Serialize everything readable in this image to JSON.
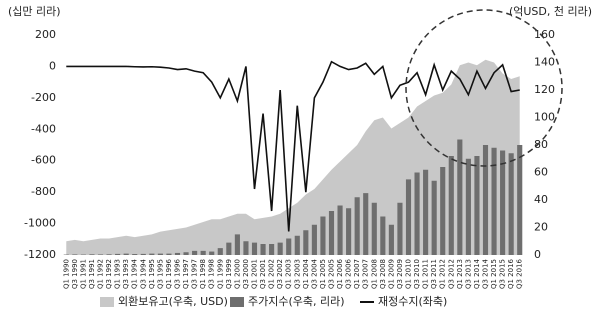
{
  "chart_data": {
    "type": "combo",
    "y_label": "(십만 리라)",
    "y2_label": "(억USD, 천 리라)",
    "categories": [
      "Q1 1990",
      "Q3 1990",
      "Q1 1991",
      "Q3 1991",
      "Q1 1992",
      "Q3 1992",
      "Q1 1993",
      "Q3 1993",
      "Q1 1994",
      "Q3 1994",
      "Q1 1995",
      "Q3 1995",
      "Q1 1996",
      "Q3 1996",
      "Q1 1997",
      "Q3 1997",
      "Q1 1998",
      "Q3 1998",
      "Q1 1999",
      "Q3 1999",
      "Q1 2000",
      "Q3 2000",
      "Q1 2001",
      "Q3 2001",
      "Q1 2002",
      "Q3 2002",
      "Q1 2003",
      "Q3 2003",
      "Q1 2004",
      "Q3 2004",
      "Q1 2005",
      "Q3 2005",
      "Q1 2006",
      "Q3 2006",
      "Q1 2007",
      "Q3 2007",
      "Q1 2008",
      "Q3 2008",
      "Q1 2009",
      "Q3 2009",
      "Q1 2010",
      "Q3 2010",
      "Q1 2011",
      "Q3 2011",
      "Q1 2012",
      "Q3 2012",
      "Q1 2013",
      "Q3 2013",
      "Q1 2014",
      "Q3 2014",
      "Q1 2015",
      "Q3 2015",
      "Q1 2016",
      "Q3 2016"
    ],
    "series": [
      {
        "name": "외환보유고(우축, USD)",
        "kind": "area",
        "axis": "y2",
        "color": "#c8c8c8",
        "values": [
          10,
          11,
          10,
          11,
          12,
          12,
          13,
          14,
          13,
          14,
          15,
          17,
          18,
          19,
          20,
          22,
          24,
          26,
          26,
          28,
          30,
          30,
          26,
          27,
          28,
          30,
          34,
          38,
          44,
          48,
          55,
          62,
          68,
          74,
          80,
          90,
          98,
          100,
          92,
          96,
          100,
          108,
          112,
          116,
          118,
          124,
          138,
          140,
          138,
          142,
          140,
          132,
          128,
          130
        ]
      },
      {
        "name": "주가지수(우축, 리라)",
        "kind": "bar",
        "axis": "y2",
        "color": "#6e6e6e",
        "values": [
          0.3,
          0.4,
          0.3,
          0.5,
          0.4,
          0.5,
          0.8,
          1,
          0.7,
          0.8,
          1,
          1,
          1,
          1.5,
          2,
          3,
          3,
          2.5,
          5,
          9,
          15,
          10,
          9,
          8,
          8,
          9,
          12,
          14,
          18,
          22,
          28,
          32,
          36,
          34,
          42,
          45,
          38,
          28,
          22,
          38,
          55,
          60,
          62,
          54,
          64,
          72,
          84,
          70,
          72,
          80,
          78,
          76,
          74,
          80
        ]
      },
      {
        "name": "재정수지(좌축)",
        "kind": "line",
        "axis": "y",
        "color": "#111111",
        "values": [
          0,
          0,
          0,
          0,
          0,
          0,
          0,
          0,
          -2,
          -3,
          -2,
          -5,
          -10,
          -20,
          -15,
          -30,
          -40,
          -100,
          -200,
          -80,
          -220,
          0,
          -780,
          -300,
          -920,
          -150,
          -1050,
          -250,
          -800,
          -200,
          -100,
          30,
          0,
          -20,
          -10,
          20,
          -50,
          0,
          -200,
          -120,
          -100,
          -40,
          -180,
          10,
          -150,
          -30,
          -80,
          -180,
          -30,
          -140,
          -40,
          10,
          -160,
          -150
        ]
      }
    ],
    "ylim": [
      -1200,
      200
    ],
    "yticks": [
      -1200,
      -1000,
      -800,
      -600,
      -400,
      -200,
      0,
      200
    ],
    "y2lim": [
      0,
      160
    ],
    "y2ticks": [
      0,
      20,
      40,
      60,
      80,
      100,
      120,
      140,
      160
    ]
  }
}
